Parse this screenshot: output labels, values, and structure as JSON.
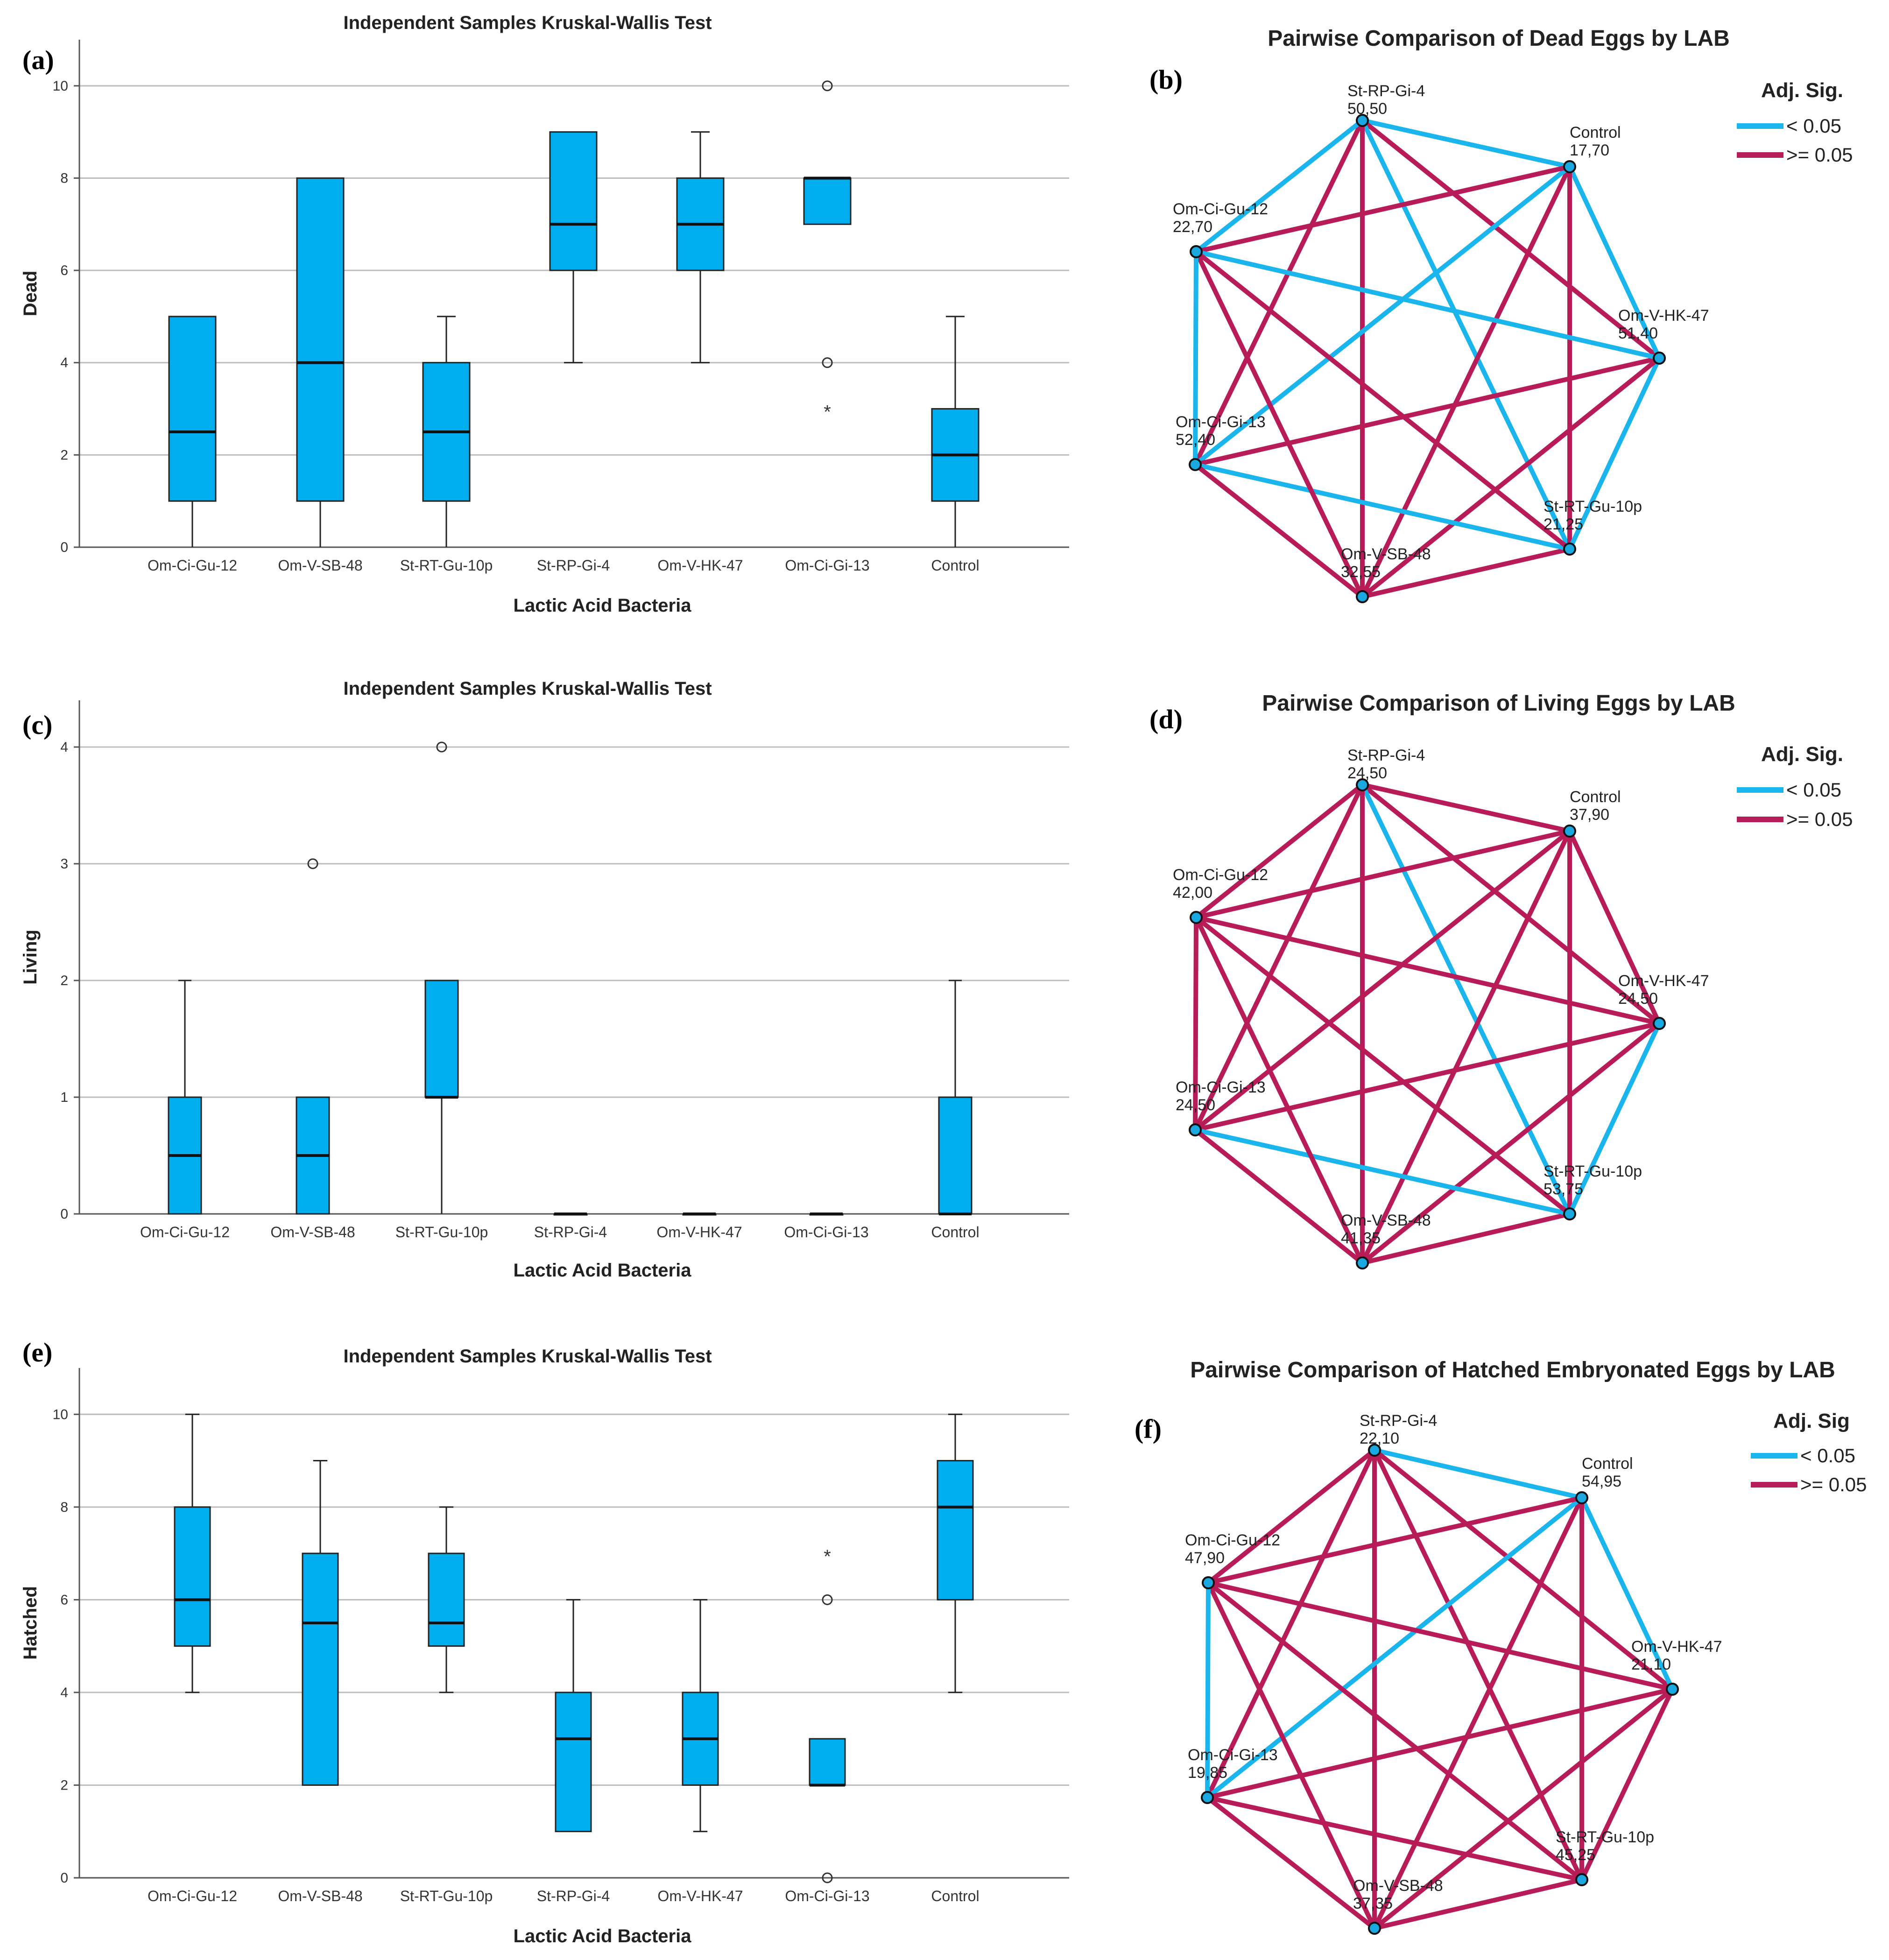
{
  "chart_data": [
    {
      "type": "box",
      "panel": "(a)",
      "title": "Independent Samples Kruskal-Wallis Test",
      "xlabel": "Lactic Acid Bacteria",
      "ylabel": "Dead",
      "ylim": [
        0,
        11
      ],
      "yticks": [
        "0",
        "2",
        "4",
        "6",
        "8",
        "10"
      ],
      "ytick_values": [
        0,
        2,
        4,
        6,
        8,
        10
      ],
      "categories": [
        "Om-Ci-Gu-12",
        "Om-V-SB-48",
        "St-RT-Gu-10p",
        "St-RP-Gi-4",
        "Om-V-HK-47",
        "Om-Ci-Gi-13",
        "Control"
      ],
      "boxes": [
        {
          "min": 0,
          "q1": 1,
          "median": 2.5,
          "q3": 5,
          "max": 5
        },
        {
          "min": 0,
          "q1": 1,
          "median": 4,
          "q3": 8,
          "max": 8
        },
        {
          "min": 0,
          "q1": 1,
          "median": 2.5,
          "q3": 4,
          "max": 5
        },
        {
          "min": 4,
          "q1": 6,
          "median": 7,
          "q3": 9,
          "max": 9
        },
        {
          "min": 4,
          "q1": 6,
          "median": 7,
          "q3": 8,
          "max": 9
        },
        {
          "min": 7,
          "q1": 7,
          "median": 8,
          "q3": 8,
          "max": 8
        },
        {
          "min": 0,
          "q1": 1,
          "median": 2,
          "q3": 3,
          "max": 5
        }
      ],
      "outliers": [
        {
          "cat": 5,
          "value": 10,
          "kind": "circle"
        },
        {
          "cat": 5,
          "value": 4,
          "kind": "circle"
        },
        {
          "cat": 5,
          "value": 3,
          "kind": "star"
        }
      ]
    },
    {
      "type": "network",
      "panel": "(b)",
      "title": "Pairwise Comparison of Dead Eggs by LAB",
      "legend_title": "Adj. Sig.",
      "legend": [
        {
          "label": "< 0.05",
          "color": "#19b5ec"
        },
        {
          "label": ">= 0.05",
          "color": "#b81c58"
        }
      ],
      "nodes": [
        {
          "name": "St-RP-Gi-4",
          "value": "50,50"
        },
        {
          "name": "Control",
          "value": "17,70"
        },
        {
          "name": "Om-V-HK-47",
          "value": "51,40"
        },
        {
          "name": "St-RT-Gu-10p",
          "value": "21,25"
        },
        {
          "name": "Om-V-SB-48",
          "value": "32,55"
        },
        {
          "name": "Om-Ci-Gi-13",
          "value": "52,40"
        },
        {
          "name": "Om-Ci-Gu-12",
          "value": "22,70"
        }
      ],
      "edges": [
        {
          "a": 0,
          "b": 1,
          "sig": true
        },
        {
          "a": 0,
          "b": 2,
          "sig": false
        },
        {
          "a": 0,
          "b": 3,
          "sig": true
        },
        {
          "a": 0,
          "b": 4,
          "sig": false
        },
        {
          "a": 0,
          "b": 5,
          "sig": false
        },
        {
          "a": 0,
          "b": 6,
          "sig": true
        },
        {
          "a": 1,
          "b": 2,
          "sig": true
        },
        {
          "a": 1,
          "b": 3,
          "sig": false
        },
        {
          "a": 1,
          "b": 4,
          "sig": false
        },
        {
          "a": 1,
          "b": 5,
          "sig": true
        },
        {
          "a": 1,
          "b": 6,
          "sig": false
        },
        {
          "a": 2,
          "b": 3,
          "sig": true
        },
        {
          "a": 2,
          "b": 4,
          "sig": false
        },
        {
          "a": 2,
          "b": 5,
          "sig": false
        },
        {
          "a": 2,
          "b": 6,
          "sig": true
        },
        {
          "a": 3,
          "b": 4,
          "sig": false
        },
        {
          "a": 3,
          "b": 5,
          "sig": true
        },
        {
          "a": 3,
          "b": 6,
          "sig": false
        },
        {
          "a": 4,
          "b": 5,
          "sig": false
        },
        {
          "a": 4,
          "b": 6,
          "sig": false
        },
        {
          "a": 5,
          "b": 6,
          "sig": true
        }
      ]
    },
    {
      "type": "box",
      "panel": "(c)",
      "title": "Independent Samples Kruskal-Wallis Test",
      "xlabel": "Lactic Acid Bacteria",
      "ylabel": "Living",
      "ylim": [
        0,
        4.4
      ],
      "yticks": [
        "0",
        "1",
        "2",
        "3",
        "4"
      ],
      "ytick_values": [
        0,
        1,
        2,
        3,
        4
      ],
      "categories": [
        "Om-Ci-Gu-12",
        "Om-V-SB-48",
        "St-RT-Gu-10p",
        "St-RP-Gi-4",
        "Om-V-HK-47",
        "Om-Ci-Gi-13",
        "Control"
      ],
      "boxes": [
        {
          "min": 0,
          "q1": 0,
          "median": 0.5,
          "q3": 1,
          "max": 2
        },
        {
          "min": 0,
          "q1": 0,
          "median": 0.5,
          "q3": 1,
          "max": 1
        },
        {
          "min": 0,
          "q1": 1,
          "median": 1,
          "q3": 2,
          "max": 2
        },
        {
          "min": 0,
          "q1": 0,
          "median": 0,
          "q3": 0,
          "max": 0
        },
        {
          "min": 0,
          "q1": 0,
          "median": 0,
          "q3": 0,
          "max": 0
        },
        {
          "min": 0,
          "q1": 0,
          "median": 0,
          "q3": 0,
          "max": 0
        },
        {
          "min": 0,
          "q1": 0,
          "median": 0,
          "q3": 1,
          "max": 2
        }
      ],
      "outliers": [
        {
          "cat": 1,
          "value": 3,
          "kind": "circle"
        },
        {
          "cat": 2,
          "value": 4,
          "kind": "circle"
        }
      ]
    },
    {
      "type": "network",
      "panel": "(d)",
      "title": "Pairwise Comparison of Living Eggs by LAB",
      "legend_title": "Adj. Sig.",
      "legend": [
        {
          "label": "< 0.05",
          "color": "#19b5ec"
        },
        {
          "label": ">= 0.05",
          "color": "#b81c58"
        }
      ],
      "nodes": [
        {
          "name": "St-RP-Gi-4",
          "value": "24,50"
        },
        {
          "name": "Control",
          "value": "37,90"
        },
        {
          "name": "Om-V-HK-47",
          "value": "24,50"
        },
        {
          "name": "St-RT-Gu-10p",
          "value": "53,75"
        },
        {
          "name": "Om-V-SB-48",
          "value": "41,35"
        },
        {
          "name": "Om-Ci-Gi-13",
          "value": "24,50"
        },
        {
          "name": "Om-Ci-Gu-12",
          "value": "42,00"
        }
      ],
      "edges": [
        {
          "a": 0,
          "b": 1,
          "sig": false
        },
        {
          "a": 0,
          "b": 2,
          "sig": false
        },
        {
          "a": 0,
          "b": 3,
          "sig": true
        },
        {
          "a": 0,
          "b": 4,
          "sig": false
        },
        {
          "a": 0,
          "b": 5,
          "sig": false
        },
        {
          "a": 0,
          "b": 6,
          "sig": false
        },
        {
          "a": 1,
          "b": 2,
          "sig": false
        },
        {
          "a": 1,
          "b": 3,
          "sig": false
        },
        {
          "a": 1,
          "b": 4,
          "sig": false
        },
        {
          "a": 1,
          "b": 5,
          "sig": false
        },
        {
          "a": 1,
          "b": 6,
          "sig": false
        },
        {
          "a": 2,
          "b": 3,
          "sig": true
        },
        {
          "a": 2,
          "b": 4,
          "sig": false
        },
        {
          "a": 2,
          "b": 5,
          "sig": false
        },
        {
          "a": 2,
          "b": 6,
          "sig": false
        },
        {
          "a": 3,
          "b": 4,
          "sig": false
        },
        {
          "a": 3,
          "b": 5,
          "sig": true
        },
        {
          "a": 3,
          "b": 6,
          "sig": false
        },
        {
          "a": 4,
          "b": 5,
          "sig": false
        },
        {
          "a": 4,
          "b": 6,
          "sig": false
        },
        {
          "a": 5,
          "b": 6,
          "sig": false
        }
      ]
    },
    {
      "type": "box",
      "panel": "(e)",
      "title": "Independent Samples Kruskal-Wallis Test",
      "xlabel": "Lactic Acid Bacteria",
      "ylabel": "Hatched",
      "ylim": [
        0,
        11
      ],
      "yticks": [
        "0",
        "2",
        "4",
        "6",
        "8",
        "10"
      ],
      "ytick_values": [
        0,
        2,
        4,
        6,
        8,
        10
      ],
      "categories": [
        "Om-Ci-Gu-12",
        "Om-V-SB-48",
        "St-RT-Gu-10p",
        "St-RP-Gi-4",
        "Om-V-HK-47",
        "Om-Ci-Gi-13",
        "Control"
      ],
      "boxes": [
        {
          "min": 4,
          "q1": 5,
          "median": 6,
          "q3": 8,
          "max": 10
        },
        {
          "min": 2,
          "q1": 2,
          "median": 5.5,
          "q3": 7,
          "max": 9
        },
        {
          "min": 4,
          "q1": 5,
          "median": 5.5,
          "q3": 7,
          "max": 8
        },
        {
          "min": 1,
          "q1": 1,
          "median": 3,
          "q3": 4,
          "max": 6
        },
        {
          "min": 1,
          "q1": 2,
          "median": 3,
          "q3": 4,
          "max": 6
        },
        {
          "min": 2,
          "q1": 2,
          "median": 2,
          "q3": 3,
          "max": 3
        },
        {
          "min": 4,
          "q1": 6,
          "median": 8,
          "q3": 9,
          "max": 10
        }
      ],
      "outliers": [
        {
          "cat": 5,
          "value": 7,
          "kind": "star"
        },
        {
          "cat": 5,
          "value": 6,
          "kind": "circle"
        },
        {
          "cat": 5,
          "value": 0,
          "kind": "circle"
        }
      ]
    },
    {
      "type": "network",
      "panel": "(f)",
      "title": "Pairwise Comparison of Hatched Embryonated Eggs by LAB",
      "legend_title": "Adj. Sig",
      "legend": [
        {
          "label": "< 0.05",
          "color": "#19b5ec"
        },
        {
          "label": ">= 0.05",
          "color": "#b81c58"
        }
      ],
      "nodes": [
        {
          "name": "St-RP-Gi-4",
          "value": "22,10"
        },
        {
          "name": "Control",
          "value": "54,95"
        },
        {
          "name": "Om-V-HK-47",
          "value": "21,10"
        },
        {
          "name": "St-RT-Gu-10p",
          "value": "45,25"
        },
        {
          "name": "Om-V-SB-48",
          "value": "37,35"
        },
        {
          "name": "Om-Ci-Gi-13",
          "value": "19,85"
        },
        {
          "name": "Om-Ci-Gu-12",
          "value": "47,90"
        }
      ],
      "edges": [
        {
          "a": 0,
          "b": 1,
          "sig": true
        },
        {
          "a": 0,
          "b": 2,
          "sig": false
        },
        {
          "a": 0,
          "b": 3,
          "sig": false
        },
        {
          "a": 0,
          "b": 4,
          "sig": false
        },
        {
          "a": 0,
          "b": 5,
          "sig": false
        },
        {
          "a": 0,
          "b": 6,
          "sig": false
        },
        {
          "a": 1,
          "b": 2,
          "sig": true
        },
        {
          "a": 1,
          "b": 3,
          "sig": false
        },
        {
          "a": 1,
          "b": 4,
          "sig": false
        },
        {
          "a": 1,
          "b": 5,
          "sig": true
        },
        {
          "a": 1,
          "b": 6,
          "sig": false
        },
        {
          "a": 2,
          "b": 3,
          "sig": false
        },
        {
          "a": 2,
          "b": 4,
          "sig": false
        },
        {
          "a": 2,
          "b": 5,
          "sig": false
        },
        {
          "a": 2,
          "b": 6,
          "sig": false
        },
        {
          "a": 3,
          "b": 4,
          "sig": false
        },
        {
          "a": 3,
          "b": 5,
          "sig": false
        },
        {
          "a": 3,
          "b": 6,
          "sig": false
        },
        {
          "a": 4,
          "b": 5,
          "sig": false
        },
        {
          "a": 4,
          "b": 6,
          "sig": false
        },
        {
          "a": 5,
          "b": 6,
          "sig": true
        }
      ]
    }
  ]
}
